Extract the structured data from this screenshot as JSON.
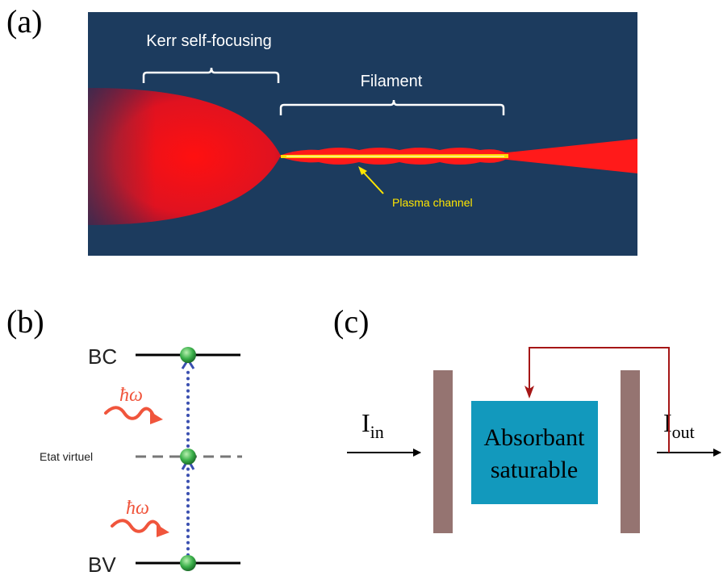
{
  "panel_a": {
    "label": "(a)",
    "kerr_label": "Kerr self-focusing",
    "filament_label": "Filament",
    "plasma_label": "Plasma channel",
    "colors": {
      "background": "#1c3b5e",
      "beam": "#ff1a1a",
      "plasma": "#ffd900"
    }
  },
  "panel_b": {
    "label": "(b)",
    "upper_level": "BC",
    "lower_level": "BV",
    "virtual_level": "Etat virtuel",
    "photon_symbol": "ħω",
    "colors": {
      "photon": "#f0553c",
      "transition": "#3a4fb0",
      "electron": "#3bb04a"
    }
  },
  "panel_c": {
    "label": "(c)",
    "input_main": "I",
    "input_sub": "in",
    "output_main": "I",
    "output_sub": "out",
    "absorber_line1": "Absorbant",
    "absorber_line2": "saturable",
    "colors": {
      "mirror": "#957471",
      "absorber": "#1299bd",
      "feedback": "#a51616"
    }
  }
}
